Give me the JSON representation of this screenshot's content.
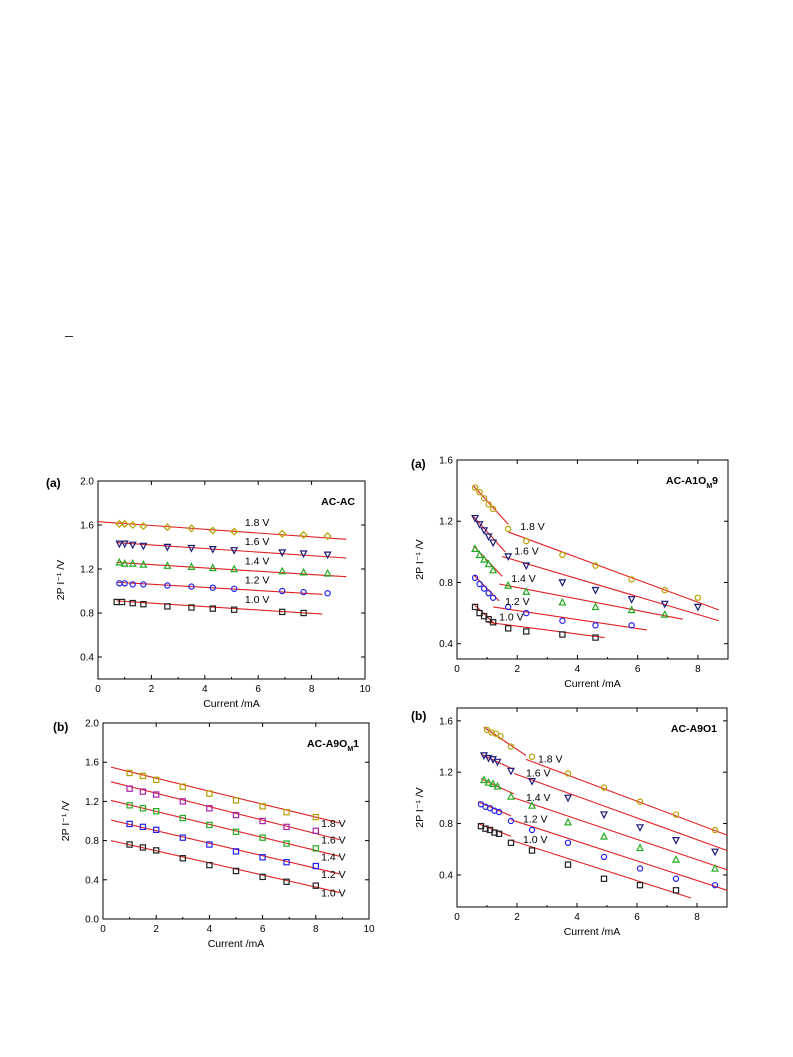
{
  "chart_data": [
    {
      "id": "panel-top-left",
      "type": "scatter",
      "panel_label": "(a)",
      "title": "AC-AC",
      "xlabel": "Current /mA",
      "ylabel": "2P I⁻¹ /V",
      "xlim": [
        0,
        10
      ],
      "ylim": [
        0.2,
        2.0
      ],
      "xticks": [
        0,
        2,
        4,
        6,
        8,
        10
      ],
      "yticks": [
        0.4,
        0.8,
        1.2,
        1.6,
        2.0
      ],
      "series": [
        {
          "name": "1.0 V",
          "color": "#222222",
          "marker": "square",
          "x": [
            0.7,
            0.9,
            1.3,
            1.7,
            2.6,
            3.5,
            4.3,
            5.1,
            6.9,
            7.7
          ],
          "y": [
            0.9,
            0.9,
            0.89,
            0.88,
            0.86,
            0.85,
            0.84,
            0.83,
            0.81,
            0.8
          ],
          "fit": [
            [
              0.7,
              0.91
            ],
            [
              8.4,
              0.79
            ]
          ]
        },
        {
          "name": "1.2 V",
          "color": "#2222ee",
          "marker": "circle",
          "x": [
            0.8,
            1.0,
            1.3,
            1.7,
            2.6,
            3.5,
            4.3,
            5.1,
            6.9,
            7.7,
            8.6
          ],
          "y": [
            1.07,
            1.07,
            1.06,
            1.06,
            1.05,
            1.04,
            1.03,
            1.02,
            1.0,
            0.99,
            0.98
          ],
          "fit": [
            [
              0.7,
              1.08
            ],
            [
              8.4,
              0.97
            ]
          ]
        },
        {
          "name": "1.4 V",
          "color": "#22aa22",
          "marker": "triangle-up",
          "x": [
            0.8,
            1.0,
            1.3,
            1.7,
            2.6,
            3.5,
            4.3,
            5.1,
            6.9,
            7.7,
            8.6
          ],
          "y": [
            1.26,
            1.25,
            1.25,
            1.24,
            1.23,
            1.22,
            1.21,
            1.2,
            1.18,
            1.17,
            1.16
          ],
          "fit": [
            [
              0.7,
              1.26
            ],
            [
              9.3,
              1.13
            ]
          ]
        },
        {
          "name": "1.6 V",
          "color": "#1a1a7a",
          "marker": "triangle-down",
          "x": [
            0.8,
            1.0,
            1.3,
            1.7,
            2.6,
            3.5,
            4.3,
            5.1,
            6.9,
            7.7,
            8.6
          ],
          "y": [
            1.43,
            1.43,
            1.42,
            1.41,
            1.4,
            1.39,
            1.38,
            1.37,
            1.35,
            1.34,
            1.33
          ],
          "fit": [
            [
              0.7,
              1.44
            ],
            [
              9.3,
              1.3
            ]
          ]
        },
        {
          "name": "1.8 V",
          "color": "#b8a000",
          "marker": "diamond",
          "x": [
            0.8,
            1.0,
            1.3,
            1.7,
            2.6,
            3.5,
            4.3,
            5.1,
            6.9,
            7.7,
            8.6
          ],
          "y": [
            1.61,
            1.61,
            1.6,
            1.59,
            1.58,
            1.57,
            1.55,
            1.54,
            1.52,
            1.51,
            1.5
          ],
          "fit": [
            [
              0.0,
              1.63
            ],
            [
              9.3,
              1.47
            ]
          ]
        }
      ]
    },
    {
      "id": "panel-bottom-left",
      "type": "scatter",
      "panel_label": "(b)",
      "title": "AC-A9O",
      "title_sub": "M",
      "title_tail": "1",
      "xlabel": "Current /mA",
      "ylabel": "2P I⁻¹ /V",
      "xlim": [
        0,
        10
      ],
      "ylim": [
        0.0,
        2.0
      ],
      "xticks": [
        0,
        2,
        4,
        6,
        8,
        10
      ],
      "yticks": [
        0.0,
        0.4,
        0.8,
        1.2,
        1.6,
        2.0
      ],
      "series": [
        {
          "name": "1.0 V",
          "color": "#222222",
          "marker": "square",
          "x": [
            1.0,
            1.5,
            2.0,
            3.0,
            4.0,
            5.0,
            6.0,
            6.9,
            8.0
          ],
          "y": [
            0.76,
            0.73,
            0.7,
            0.62,
            0.55,
            0.49,
            0.43,
            0.38,
            0.34
          ],
          "fit": [
            [
              0.3,
              0.8
            ],
            [
              8.9,
              0.27
            ]
          ]
        },
        {
          "name": "1.2 V",
          "color": "#2222ee",
          "marker": "square",
          "x": [
            1.0,
            1.5,
            2.0,
            3.0,
            4.0,
            5.0,
            6.0,
            6.9,
            8.0
          ],
          "y": [
            0.97,
            0.94,
            0.91,
            0.83,
            0.76,
            0.69,
            0.63,
            0.58,
            0.54
          ],
          "fit": [
            [
              0.3,
              1.01
            ],
            [
              8.9,
              0.46
            ]
          ]
        },
        {
          "name": "1.4 V",
          "color": "#22aa22",
          "marker": "square",
          "x": [
            1.0,
            1.5,
            2.0,
            3.0,
            4.0,
            5.0,
            6.0,
            6.9,
            8.0
          ],
          "y": [
            1.16,
            1.13,
            1.1,
            1.03,
            0.96,
            0.89,
            0.83,
            0.77,
            0.72
          ],
          "fit": [
            [
              0.3,
              1.21
            ],
            [
              8.9,
              0.64
            ]
          ]
        },
        {
          "name": "1.6 V",
          "color": "#aa22aa",
          "marker": "square",
          "x": [
            1.0,
            1.5,
            2.0,
            3.0,
            4.0,
            5.0,
            6.0,
            6.9,
            8.0
          ],
          "y": [
            1.33,
            1.3,
            1.27,
            1.2,
            1.13,
            1.06,
            1.0,
            0.94,
            0.9
          ],
          "fit": [
            [
              0.3,
              1.4
            ],
            [
              8.9,
              0.81
            ]
          ]
        },
        {
          "name": "1.8 V",
          "color": "#b8a000",
          "marker": "square",
          "x": [
            1.0,
            1.5,
            2.0,
            3.0,
            4.0,
            5.0,
            6.0,
            6.9,
            8.0
          ],
          "y": [
            1.49,
            1.46,
            1.42,
            1.35,
            1.28,
            1.21,
            1.15,
            1.09,
            1.04
          ],
          "fit": [
            [
              0.3,
              1.55
            ],
            [
              8.9,
              0.98
            ]
          ]
        }
      ]
    },
    {
      "id": "panel-top-right",
      "type": "scatter",
      "panel_label": "(a)",
      "title": "AC-A1O",
      "title_sub": "M",
      "title_tail": "9",
      "xlabel": "Current /mA",
      "ylabel": "2P I⁻¹ /V",
      "xlim": [
        0,
        9
      ],
      "ylim": [
        0.3,
        1.6
      ],
      "xticks": [
        0,
        2,
        4,
        6,
        8
      ],
      "yticks": [
        0.4,
        0.8,
        1.2,
        1.6
      ],
      "series": [
        {
          "name": "1.0 V",
          "color": "#222222",
          "marker": "square",
          "x": [
            0.6,
            0.75,
            0.9,
            1.05,
            1.2,
            1.7,
            2.3,
            3.5,
            4.6
          ],
          "y": [
            0.64,
            0.6,
            0.58,
            0.56,
            0.54,
            0.5,
            0.48,
            0.46,
            0.44
          ],
          "fit": [
            [
              0.55,
              0.66
            ],
            [
              1.3,
              0.52
            ],
            [
              1.0,
              0.54
            ],
            [
              4.9,
              0.44
            ]
          ]
        },
        {
          "name": "1.2 V",
          "color": "#2222ee",
          "marker": "circle",
          "x": [
            0.6,
            0.75,
            0.9,
            1.05,
            1.2,
            1.7,
            2.3,
            3.5,
            4.6,
            5.8
          ],
          "y": [
            0.83,
            0.79,
            0.76,
            0.73,
            0.7,
            0.64,
            0.6,
            0.55,
            0.52,
            0.52
          ],
          "fit": [
            [
              0.55,
              0.85
            ],
            [
              1.4,
              0.68
            ],
            [
              1.2,
              0.64
            ],
            [
              6.3,
              0.49
            ]
          ]
        },
        {
          "name": "1.4 V",
          "color": "#22aa22",
          "marker": "triangle-up",
          "x": [
            0.6,
            0.75,
            0.9,
            1.05,
            1.2,
            1.7,
            2.3,
            3.5,
            4.6,
            5.8,
            6.9
          ],
          "y": [
            1.02,
            0.98,
            0.95,
            0.92,
            0.88,
            0.78,
            0.74,
            0.67,
            0.64,
            0.62,
            0.59
          ],
          "fit": [
            [
              0.55,
              1.04
            ],
            [
              1.5,
              0.84
            ],
            [
              1.4,
              0.79
            ],
            [
              7.5,
              0.56
            ]
          ]
        },
        {
          "name": "1.6 V",
          "color": "#1a1a7a",
          "marker": "triangle-down",
          "x": [
            0.6,
            0.75,
            0.9,
            1.05,
            1.2,
            1.7,
            2.3,
            3.5,
            4.6,
            5.8,
            6.9,
            8.0
          ],
          "y": [
            1.22,
            1.18,
            1.14,
            1.1,
            1.06,
            0.97,
            0.91,
            0.8,
            0.75,
            0.69,
            0.66,
            0.64
          ],
          "fit": [
            [
              0.55,
              1.23
            ],
            [
              1.6,
              1.0
            ],
            [
              1.5,
              0.97
            ],
            [
              8.7,
              0.55
            ]
          ]
        },
        {
          "name": "1.8 V",
          "color": "#b8a000",
          "marker": "circle",
          "x": [
            0.6,
            0.75,
            0.9,
            1.05,
            1.2,
            1.7,
            2.3,
            3.5,
            4.6,
            5.8,
            6.9,
            8.0
          ],
          "y": [
            1.42,
            1.39,
            1.35,
            1.31,
            1.28,
            1.15,
            1.07,
            0.98,
            0.91,
            0.82,
            0.75,
            0.7
          ],
          "fit": [
            [
              0.55,
              1.43
            ],
            [
              1.7,
              1.18
            ],
            [
              1.7,
              1.13
            ],
            [
              8.7,
              0.62
            ]
          ]
        }
      ]
    },
    {
      "id": "panel-bottom-right",
      "type": "scatter",
      "panel_label": "(b)",
      "title": "AC-A9O1",
      "xlabel": "Current /mA",
      "ylabel": "2P I⁻¹ /V",
      "xlim": [
        0,
        9
      ],
      "ylim": [
        0.15,
        1.7
      ],
      "xticks": [
        0,
        2,
        4,
        6,
        8
      ],
      "yticks": [
        0.4,
        0.8,
        1.2,
        1.6
      ],
      "series": [
        {
          "name": "1.0 V",
          "color": "#222222",
          "marker": "square",
          "x": [
            0.8,
            0.95,
            1.1,
            1.25,
            1.4,
            1.8,
            2.5,
            3.7,
            4.9,
            6.1,
            7.3
          ],
          "y": [
            0.78,
            0.76,
            0.75,
            0.73,
            0.72,
            0.65,
            0.59,
            0.48,
            0.37,
            0.32,
            0.28
          ],
          "fit": [
            [
              0.7,
              0.8
            ],
            [
              1.8,
              0.7
            ],
            [
              1.8,
              0.67
            ],
            [
              7.8,
              0.22
            ]
          ]
        },
        {
          "name": "1.2 V",
          "color": "#2222ee",
          "marker": "circle",
          "x": [
            0.8,
            0.95,
            1.1,
            1.25,
            1.4,
            1.8,
            2.5,
            3.7,
            4.9,
            6.1,
            7.3,
            8.6
          ],
          "y": [
            0.95,
            0.93,
            0.92,
            0.9,
            0.89,
            0.82,
            0.75,
            0.65,
            0.54,
            0.45,
            0.37,
            0.32
          ],
          "fit": [
            [
              0.7,
              0.97
            ],
            [
              1.8,
              0.86
            ],
            [
              1.8,
              0.83
            ],
            [
              9.0,
              0.28
            ]
          ]
        },
        {
          "name": "1.4 V",
          "color": "#22aa22",
          "marker": "triangle-up",
          "x": [
            0.9,
            1.05,
            1.2,
            1.35,
            1.8,
            2.5,
            3.7,
            4.9,
            6.1,
            7.3,
            8.6
          ],
          "y": [
            1.14,
            1.12,
            1.11,
            1.09,
            1.01,
            0.94,
            0.81,
            0.7,
            0.61,
            0.52,
            0.45
          ],
          "fit": [
            [
              0.8,
              1.15
            ],
            [
              1.9,
              1.03
            ],
            [
              1.9,
              1.0
            ],
            [
              9.0,
              0.44
            ]
          ]
        },
        {
          "name": "1.6 V",
          "color": "#1a1a7a",
          "marker": "triangle-down",
          "x": [
            0.9,
            1.05,
            1.2,
            1.35,
            1.8,
            2.5,
            3.7,
            4.9,
            6.1,
            7.3,
            8.6
          ],
          "y": [
            1.33,
            1.31,
            1.3,
            1.28,
            1.21,
            1.13,
            1.0,
            0.87,
            0.77,
            0.67,
            0.58
          ],
          "fit": [
            [
              0.8,
              1.34
            ],
            [
              1.9,
              1.22
            ],
            [
              1.9,
              1.19
            ],
            [
              9.0,
              0.59
            ]
          ]
        },
        {
          "name": "1.8 V",
          "color": "#b8a000",
          "marker": "circle",
          "x": [
            1.0,
            1.15,
            1.3,
            1.45,
            1.8,
            2.5,
            3.7,
            4.9,
            6.1,
            7.3,
            8.6
          ],
          "y": [
            1.53,
            1.51,
            1.5,
            1.48,
            1.4,
            1.32,
            1.19,
            1.08,
            0.97,
            0.87,
            0.75
          ],
          "fit": [
            [
              0.9,
              1.55
            ],
            [
              2.3,
              1.33
            ],
            [
              2.3,
              1.3
            ],
            [
              9.0,
              0.71
            ]
          ]
        }
      ]
    }
  ]
}
